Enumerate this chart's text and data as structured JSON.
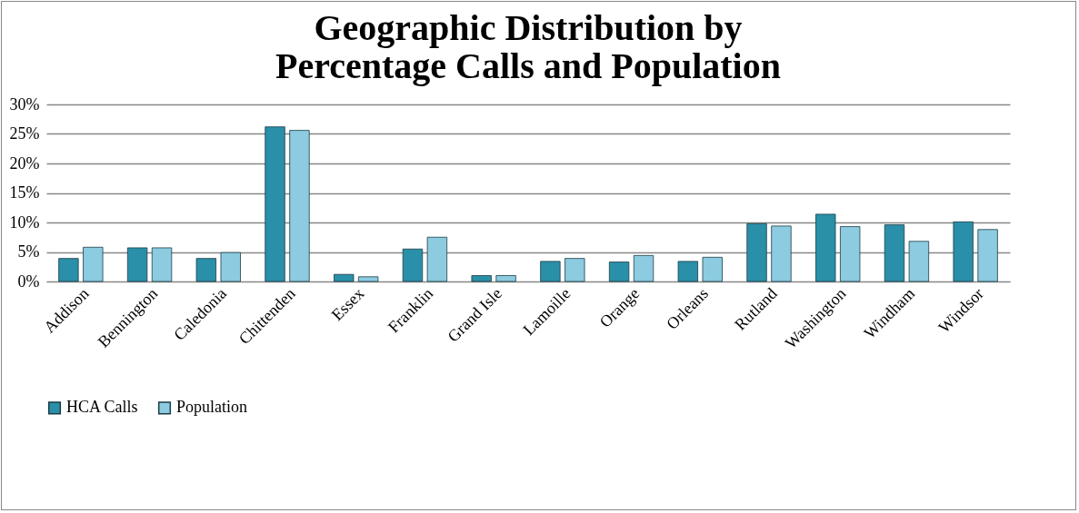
{
  "chart_data": {
    "type": "bar",
    "title": "Geographic Distribution by Percentage Calls and Population",
    "categories": [
      "Addison",
      "Bennington",
      "Caledonia",
      "Chittenden",
      "Essex",
      "Franklin",
      "Grand Isle",
      "Lamoille",
      "Orange",
      "Orleans",
      "Rutland",
      "Washington",
      "Windham",
      "Windsor"
    ],
    "series": [
      {
        "name": "HCA Calls",
        "color": "#2a8fa8",
        "values": [
          3.9,
          5.7,
          3.9,
          26.2,
          1.2,
          5.5,
          1.0,
          3.4,
          3.3,
          3.4,
          9.8,
          11.4,
          9.6,
          10.1
        ]
      },
      {
        "name": "Population",
        "color": "#8ccbe0",
        "values": [
          5.8,
          5.7,
          4.9,
          25.6,
          0.8,
          7.5,
          1.0,
          3.9,
          4.4,
          4.1,
          9.4,
          9.3,
          6.8,
          8.8
        ]
      }
    ],
    "ylim": [
      0,
      30
    ],
    "yticks": [
      {
        "value": 0,
        "label": "0%"
      },
      {
        "value": 5,
        "label": "5%"
      },
      {
        "value": 10,
        "label": "10%"
      },
      {
        "value": 15,
        "label": "15%"
      },
      {
        "value": 20,
        "label": "20%"
      },
      {
        "value": 25,
        "label": "25%"
      },
      {
        "value": 30,
        "label": "30%"
      }
    ],
    "grid": "y",
    "legend": "bottom"
  }
}
